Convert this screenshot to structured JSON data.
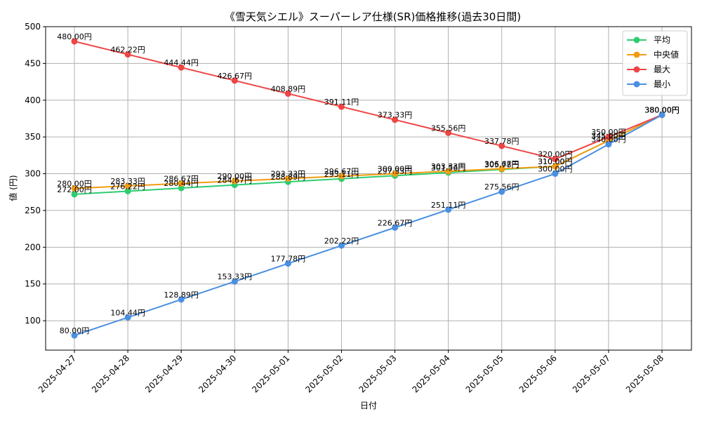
{
  "chart_data": {
    "type": "line",
    "title": "《雪天気シエル》スーパーレア仕様(SR)価格推移(過去30日間)",
    "xlabel": "日付",
    "ylabel": "値 (円)",
    "ylim": [
      60,
      500
    ],
    "yticks": [
      100,
      150,
      200,
      250,
      300,
      350,
      400,
      450,
      500
    ],
    "grid": true,
    "legend_position": "top-right",
    "value_suffix": "円",
    "x": [
      "2025-04-27",
      "2025-04-28",
      "2025-04-29",
      "2025-04-30",
      "2025-05-01",
      "2025-05-02",
      "2025-05-03",
      "2025-05-04",
      "2025-05-05",
      "2025-05-06",
      "2025-05-07",
      "2025-05-08"
    ],
    "series": [
      {
        "name": "平均",
        "color": "#2ecc71",
        "values": [
          272.0,
          276.22,
          280.44,
          284.67,
          288.89,
          293.11,
          297.33,
          301.56,
          305.78,
          310.0,
          345.0,
          380.0
        ]
      },
      {
        "name": "中央値",
        "color": "#f39c12",
        "values": [
          280.0,
          283.33,
          286.67,
          290.0,
          293.33,
          296.67,
          300.0,
          303.33,
          306.67,
          310.0,
          345.0,
          380.0
        ]
      },
      {
        "name": "最大",
        "color": "#ef4444",
        "values": [
          480.0,
          462.22,
          444.44,
          426.67,
          408.89,
          391.11,
          373.33,
          355.56,
          337.78,
          320.0,
          350.0,
          380.0
        ]
      },
      {
        "name": "最小",
        "color": "#4a90e2",
        "values": [
          80.0,
          104.44,
          128.89,
          153.33,
          177.78,
          202.22,
          226.67,
          251.11,
          275.56,
          300.0,
          340.0,
          380.0
        ]
      }
    ]
  }
}
